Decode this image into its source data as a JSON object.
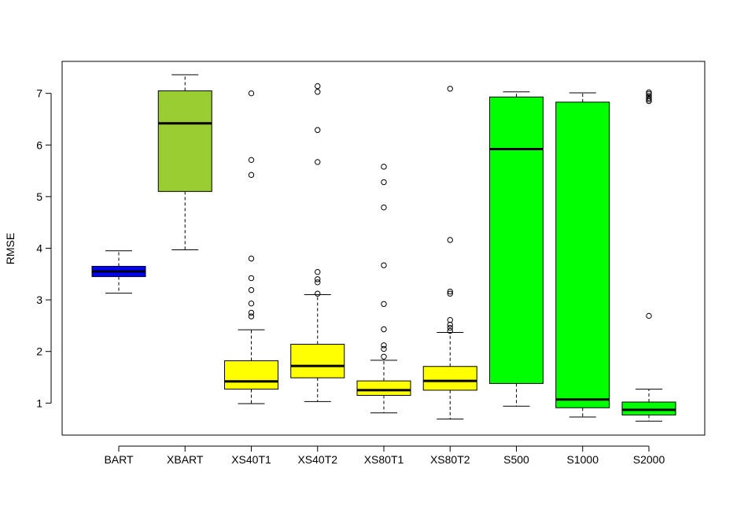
{
  "chart_data": {
    "type": "boxplot",
    "title": "",
    "xlabel": "",
    "ylabel": "RMSE",
    "ylim": [
      0.38,
      7.62
    ],
    "yticks": [
      1,
      2,
      3,
      4,
      5,
      6,
      7
    ],
    "grid": false,
    "legend": "none",
    "categories": [
      "BART",
      "XBART",
      "XS40T1",
      "XS40T2",
      "XS80T1",
      "XS80T2",
      "S500",
      "S1000",
      "S2000"
    ],
    "boxes": [
      {
        "label": "BART",
        "color": "#0000FF",
        "whisker_low": 3.13,
        "q1": 3.45,
        "median": 3.55,
        "q3": 3.65,
        "whisker_high": 3.95,
        "outliers": []
      },
      {
        "label": "XBART",
        "color": "#9ACD32",
        "whisker_low": 3.97,
        "q1": 5.1,
        "median": 6.42,
        "q3": 7.05,
        "whisker_high": 7.36,
        "outliers": []
      },
      {
        "label": "XS40T1",
        "color": "#FFFF00",
        "whisker_low": 0.99,
        "q1": 1.27,
        "median": 1.42,
        "q3": 1.82,
        "whisker_high": 2.42,
        "outliers": [
          2.68,
          2.75,
          2.93,
          3.19,
          3.42,
          3.8,
          5.42,
          5.71,
          7.0
        ]
      },
      {
        "label": "XS40T2",
        "color": "#FFFF00",
        "whisker_low": 1.03,
        "q1": 1.49,
        "median": 1.72,
        "q3": 2.14,
        "whisker_high": 3.1,
        "outliers": [
          3.12,
          3.34,
          3.4,
          3.54,
          5.67,
          6.29,
          7.03,
          7.14
        ]
      },
      {
        "label": "XS80T1",
        "color": "#FFFF00",
        "whisker_low": 0.81,
        "q1": 1.15,
        "median": 1.25,
        "q3": 1.43,
        "whisker_high": 1.83,
        "outliers": [
          1.9,
          2.05,
          2.12,
          2.43,
          2.92,
          3.67,
          4.79,
          5.28,
          5.58
        ]
      },
      {
        "label": "XS80T2",
        "color": "#FFFF00",
        "whisker_low": 0.69,
        "q1": 1.25,
        "median": 1.43,
        "q3": 1.71,
        "whisker_high": 2.37,
        "outliers": [
          2.4,
          2.46,
          2.52,
          2.61,
          3.12,
          3.16,
          4.16,
          7.09
        ]
      },
      {
        "label": "S500",
        "color": "#00FF00",
        "whisker_low": 0.94,
        "q1": 1.38,
        "median": 5.92,
        "q3": 6.93,
        "whisker_high": 7.03,
        "outliers": []
      },
      {
        "label": "S1000",
        "color": "#00FF00",
        "whisker_low": 0.73,
        "q1": 0.91,
        "median": 1.07,
        "q3": 6.83,
        "whisker_high": 7.01,
        "outliers": []
      },
      {
        "label": "S2000",
        "color": "#00FF00",
        "whisker_low": 0.65,
        "q1": 0.77,
        "median": 0.87,
        "q3": 1.02,
        "whisker_high": 1.27,
        "outliers": [
          2.69,
          6.85,
          6.88,
          6.91,
          6.95,
          6.99,
          7.02
        ]
      }
    ]
  }
}
